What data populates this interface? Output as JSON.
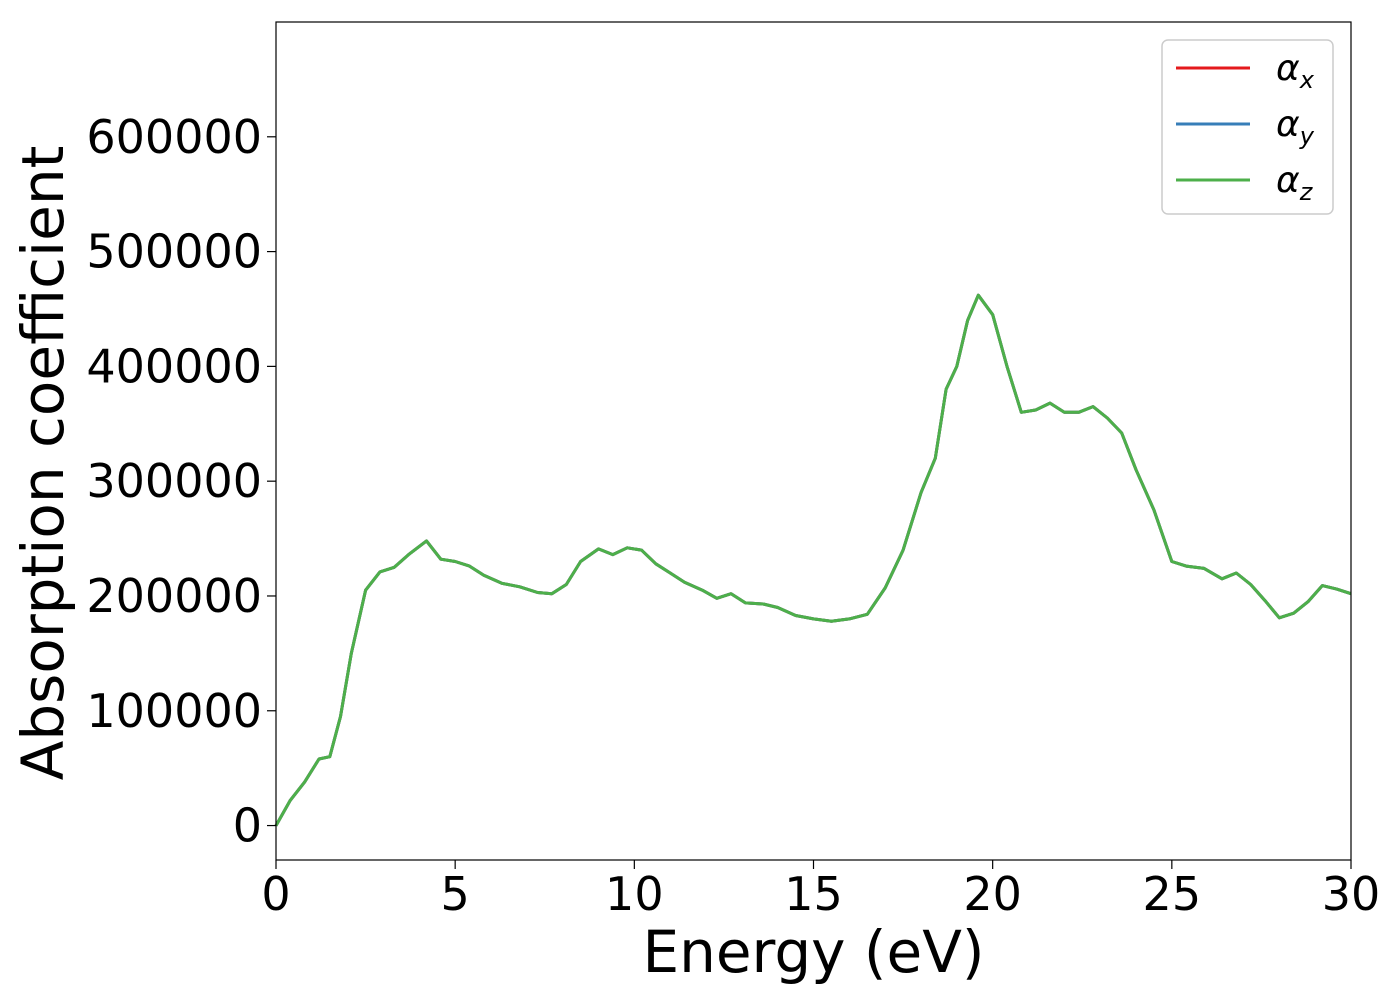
{
  "chart_data": {
    "type": "line",
    "title": "",
    "xlabel": "Energy (eV)",
    "ylabel": "Absorption coefficient",
    "xlim": [
      0,
      30
    ],
    "ylim": [
      -30000,
      700000
    ],
    "xticks": [
      0,
      5,
      10,
      15,
      20,
      25,
      30
    ],
    "yticks": [
      0,
      100000,
      200000,
      300000,
      400000,
      500000,
      600000
    ],
    "grid": false,
    "legend_position": "top-right",
    "series": [
      {
        "name": "α",
        "subscript": "x",
        "color": "#e41a1c",
        "x": [
          0,
          0.4,
          0.8,
          1.2,
          1.5,
          1.8,
          2.1,
          2.5,
          2.9,
          3.3,
          3.7,
          4.2,
          4.6,
          5.0,
          5.4,
          5.8,
          6.3,
          6.8,
          7.3,
          7.7,
          8.1,
          8.5,
          9.0,
          9.4,
          9.8,
          10.2,
          10.6,
          11.0,
          11.4,
          11.9,
          12.3,
          12.7,
          13.1,
          13.6,
          14.0,
          14.5,
          15.0,
          15.5,
          16.0,
          16.5,
          17.0,
          17.5,
          18.0,
          18.4,
          18.7,
          19.0,
          19.3,
          19.6,
          20.0,
          20.4,
          20.8,
          21.2,
          21.6,
          22.0,
          22.4,
          22.8,
          23.2,
          23.6,
          24.0,
          24.5,
          25.0,
          25.4,
          25.9,
          26.4,
          26.8,
          27.2,
          27.6,
          28.0,
          28.4,
          28.8,
          29.2,
          29.6,
          30.0
        ],
        "y": [
          0,
          22000,
          38000,
          58000,
          60000,
          95000,
          150000,
          205000,
          221000,
          225000,
          236000,
          248000,
          232000,
          230000,
          226000,
          218000,
          211000,
          208000,
          203000,
          202000,
          210000,
          230000,
          241000,
          236000,
          242000,
          240000,
          228000,
          220000,
          212000,
          205000,
          198000,
          202000,
          194000,
          193000,
          190000,
          183000,
          180000,
          178000,
          180000,
          184000,
          207000,
          240000,
          290000,
          320000,
          380000,
          400000,
          440000,
          462000,
          445000,
          400000,
          360000,
          362000,
          368000,
          360000,
          360000,
          365000,
          355000,
          342000,
          310000,
          275000,
          230000,
          226000,
          224000,
          215000,
          220000,
          210000,
          196000,
          181000,
          185000,
          195000,
          209000,
          206000,
          202000
        ]
      },
      {
        "name": "α",
        "subscript": "y",
        "color": "#377eb8",
        "x": [
          0,
          0.4,
          0.8,
          1.2,
          1.5,
          1.8,
          2.1,
          2.5,
          2.9,
          3.3,
          3.7,
          4.2,
          4.6,
          5.0,
          5.4,
          5.8,
          6.3,
          6.8,
          7.3,
          7.7,
          8.1,
          8.5,
          9.0,
          9.4,
          9.8,
          10.2,
          10.6,
          11.0,
          11.4,
          11.9,
          12.3,
          12.7,
          13.1,
          13.6,
          14.0,
          14.5,
          15.0,
          15.5,
          16.0,
          16.5,
          17.0,
          17.5,
          18.0,
          18.4,
          18.7,
          19.0,
          19.3,
          19.6,
          20.0,
          20.4,
          20.8,
          21.2,
          21.6,
          22.0,
          22.4,
          22.8,
          23.2,
          23.6,
          24.0,
          24.5,
          25.0,
          25.4,
          25.9,
          26.4,
          26.8,
          27.2,
          27.6,
          28.0,
          28.4,
          28.8,
          29.2,
          29.6,
          30.0
        ],
        "y": [
          0,
          22000,
          38000,
          58000,
          60000,
          95000,
          150000,
          205000,
          221000,
          225000,
          236000,
          248000,
          232000,
          230000,
          226000,
          218000,
          211000,
          208000,
          203000,
          202000,
          210000,
          230000,
          241000,
          236000,
          242000,
          240000,
          228000,
          220000,
          212000,
          205000,
          198000,
          202000,
          194000,
          193000,
          190000,
          183000,
          180000,
          178000,
          180000,
          184000,
          207000,
          240000,
          290000,
          320000,
          380000,
          400000,
          440000,
          462000,
          445000,
          400000,
          360000,
          362000,
          368000,
          360000,
          360000,
          365000,
          355000,
          342000,
          310000,
          275000,
          230000,
          226000,
          224000,
          215000,
          220000,
          210000,
          196000,
          181000,
          185000,
          195000,
          209000,
          206000,
          202000
        ]
      },
      {
        "name": "α",
        "subscript": "z",
        "color": "#4daf4a",
        "x": [
          0,
          0.4,
          0.8,
          1.2,
          1.5,
          1.8,
          2.1,
          2.5,
          2.9,
          3.3,
          3.7,
          4.2,
          4.6,
          5.0,
          5.4,
          5.8,
          6.3,
          6.8,
          7.3,
          7.7,
          8.1,
          8.5,
          9.0,
          9.4,
          9.8,
          10.2,
          10.6,
          11.0,
          11.4,
          11.9,
          12.3,
          12.7,
          13.1,
          13.6,
          14.0,
          14.5,
          15.0,
          15.5,
          16.0,
          16.5,
          17.0,
          17.5,
          18.0,
          18.4,
          18.7,
          19.0,
          19.3,
          19.6,
          20.0,
          20.4,
          20.8,
          21.2,
          21.6,
          22.0,
          22.4,
          22.8,
          23.2,
          23.6,
          24.0,
          24.5,
          25.0,
          25.4,
          25.9,
          26.4,
          26.8,
          27.2,
          27.6,
          28.0,
          28.4,
          28.8,
          29.2,
          29.6,
          30.0
        ],
        "y": [
          0,
          22000,
          38000,
          58000,
          60000,
          95000,
          150000,
          205000,
          221000,
          225000,
          236000,
          248000,
          232000,
          230000,
          226000,
          218000,
          211000,
          208000,
          203000,
          202000,
          210000,
          230000,
          241000,
          236000,
          242000,
          240000,
          228000,
          220000,
          212000,
          205000,
          198000,
          202000,
          194000,
          193000,
          190000,
          183000,
          180000,
          178000,
          180000,
          184000,
          207000,
          240000,
          290000,
          320000,
          380000,
          400000,
          440000,
          462000,
          445000,
          400000,
          360000,
          362000,
          368000,
          360000,
          360000,
          365000,
          355000,
          342000,
          310000,
          275000,
          230000,
          226000,
          224000,
          215000,
          220000,
          210000,
          196000,
          181000,
          185000,
          195000,
          209000,
          206000,
          202000
        ]
      }
    ]
  }
}
